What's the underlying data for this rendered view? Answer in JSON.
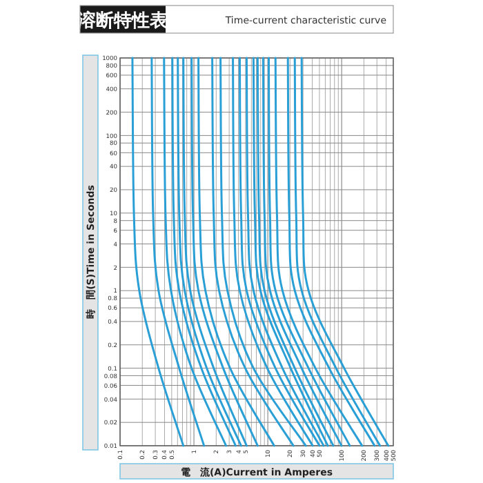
{
  "chart_data": {
    "type": "line",
    "title": "溶断特性表",
    "subtitle": "Time-current characteristic curve",
    "xlabel": "電　流(A)Current in Amperes",
    "ylabel": "時　間(S)Time in Seconds",
    "log": "xy",
    "grid": true,
    "color": "#2a9fd6",
    "xlim": [
      0.1,
      500
    ],
    "ylim": [
      0.01,
      1000
    ],
    "xticks": [
      0.1,
      0.2,
      0.3,
      0.4,
      0.5,
      1,
      2,
      3,
      4,
      5,
      10,
      20,
      30,
      40,
      50,
      100,
      200,
      300,
      400,
      500
    ],
    "yticks": [
      0.01,
      0.02,
      0.04,
      0.06,
      0.08,
      0.1,
      0.2,
      0.4,
      0.6,
      0.8,
      1,
      2,
      4,
      6,
      8,
      10,
      20,
      40,
      60,
      80,
      100,
      200,
      400,
      600,
      800,
      1000
    ],
    "series": [
      {
        "x": [
          0.147,
          0.154,
          0.182,
          0.332,
          0.719
        ],
        "values": [
          1000,
          10,
          1,
          0.1,
          0.01
        ]
      },
      {
        "x": [
          0.268,
          0.28,
          0.332,
          0.632,
          1.37
        ],
        "values": [
          1000,
          10,
          1,
          0.1,
          0.01
        ]
      },
      {
        "x": [
          0.394,
          0.412,
          0.489,
          0.93,
          2.72
        ],
        "values": [
          1000,
          10,
          1,
          0.1,
          0.01
        ]
      },
      {
        "x": [
          0.51,
          0.532,
          0.632,
          1.26,
          3.67
        ],
        "values": [
          1000,
          10,
          1,
          0.1,
          0.01
        ]
      },
      {
        "x": [
          0.605,
          0.632,
          0.75,
          1.49,
          4.35
        ],
        "values": [
          1000,
          10,
          1,
          0.1,
          0.01
        ]
      },
      {
        "x": [
          0.719,
          0.75,
          0.891,
          1.85,
          5.17
        ],
        "values": [
          1000,
          10,
          1,
          0.1,
          0.01
        ]
      },
      {
        "x": [
          0.93,
          0.97,
          1.15,
          2.49,
          7.28
        ],
        "values": [
          1000,
          10,
          1,
          0.1,
          0.01
        ]
      },
      {
        "x": [
          1.15,
          1.2,
          1.43,
          3.09,
          12.2
        ],
        "values": [
          1000,
          10,
          1,
          0.1,
          0.01
        ]
      },
      {
        "x": [
          1.77,
          1.85,
          2.19,
          4.95,
          22.2
        ],
        "values": [
          1000,
          10,
          1,
          0.1,
          0.01
        ]
      },
      {
        "x": [
          2.29,
          2.39,
          2.84,
          6.4,
          32.7
        ],
        "values": [
          1000,
          10,
          1,
          0.1,
          0.01
        ]
      },
      {
        "x": [
          3.37,
          3.51,
          4.17,
          9.83,
          40.5
        ],
        "values": [
          1000,
          10,
          1,
          0.1,
          0.01
        ]
      },
      {
        "x": [
          4.17,
          4.35,
          5.17,
          12.7,
          50.1
        ],
        "values": [
          1000,
          10,
          1,
          0.1,
          0.01
        ]
      },
      {
        "x": [
          5.17,
          5.39,
          6.4,
          15.8,
          57.0
        ],
        "values": [
          1000,
          10,
          1,
          0.1,
          0.01
        ]
      },
      {
        "x": [
          6.4,
          6.68,
          7.94,
          20.4,
          64.9
        ],
        "values": [
          1000,
          10,
          1,
          0.1,
          0.01
        ]
      },
      {
        "x": [
          7.28,
          7.6,
          9.02,
          23.2,
          77.0
        ],
        "values": [
          1000,
          10,
          1,
          0.1,
          0.01
        ]
      },
      {
        "x": [
          8.65,
          9.02,
          10.7,
          28.7,
          99.6
        ],
        "values": [
          1000,
          10,
          1,
          0.1,
          0.01
        ]
      },
      {
        "x": [
          10.3,
          10.7,
          12.7,
          35.6,
          129
        ],
        "values": [
          1000,
          10,
          1,
          0.1,
          0.01
        ]
      },
      {
        "x": [
          12.7,
          13.3,
          15.8,
          44.1,
          189
        ],
        "values": [
          1000,
          10,
          1,
          0.1,
          0.01
        ]
      },
      {
        "x": [
          18.7,
          19.5,
          23.2,
          67.7,
          279
        ],
        "values": [
          1000,
          10,
          1,
          0.1,
          0.01
        ]
      },
      {
        "x": [
          23.2,
          24.2,
          28.7,
          83.9,
          331
        ],
        "values": [
          1000,
          10,
          1,
          0.1,
          0.01
        ]
      },
      {
        "x": [
          28.7,
          30.0,
          35.6,
          108,
          428
        ],
        "values": [
          1000,
          10,
          1,
          0.1,
          0.01
        ]
      }
    ]
  }
}
